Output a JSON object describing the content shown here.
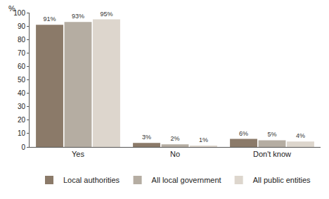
{
  "chart_data": {
    "type": "bar",
    "y_label": "%",
    "categories": [
      "Yes",
      "No",
      "Don't know"
    ],
    "series": [
      {
        "name": "Local authorities",
        "color": "#8b7a69",
        "values": [
          91,
          3,
          6
        ],
        "value_labels": [
          "91%",
          "3%",
          "6%"
        ]
      },
      {
        "name": "All local government",
        "color": "#b5ada2",
        "values": [
          93,
          2,
          5
        ],
        "value_labels": [
          "93%",
          "2%",
          "5%"
        ]
      },
      {
        "name": "All public entities",
        "color": "#ddd6cd",
        "values": [
          95,
          1,
          4
        ],
        "value_labels": [
          "95%",
          "1%",
          "4%"
        ]
      }
    ],
    "ylim": [
      0,
      100
    ],
    "yticks": [
      0,
      10,
      20,
      30,
      40,
      50,
      60,
      70,
      80,
      90,
      100
    ],
    "grid": false,
    "legend": "bottom",
    "data_labels": true
  }
}
